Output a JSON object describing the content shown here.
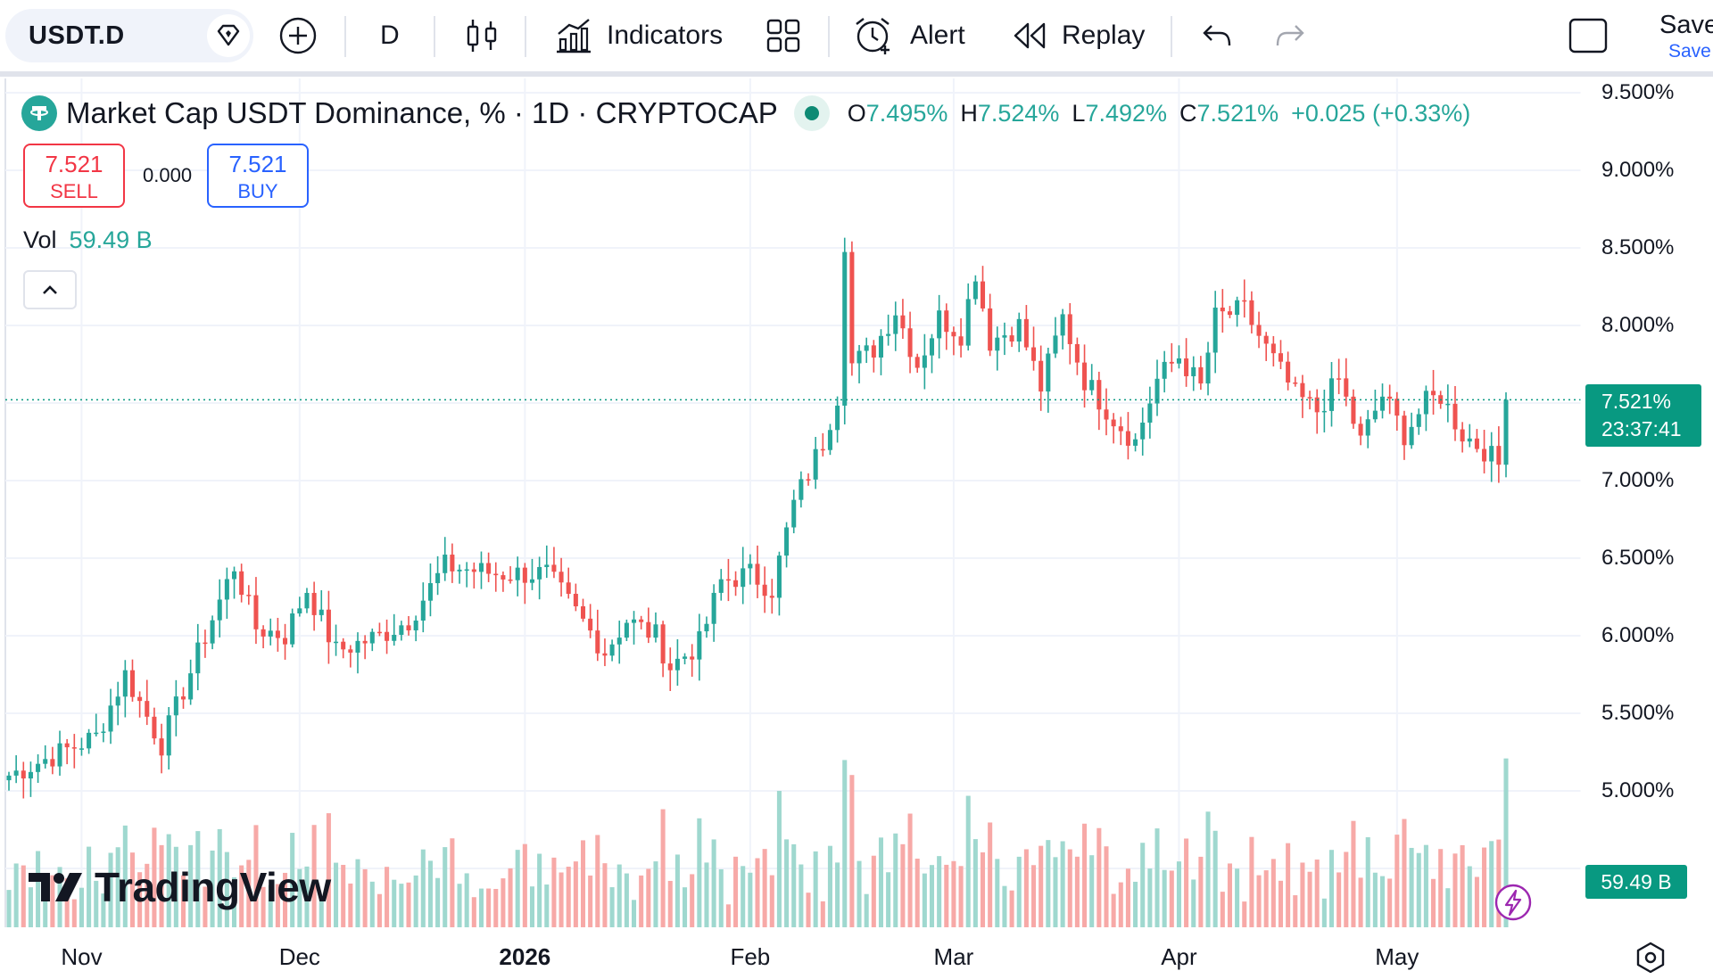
{
  "toolbar": {
    "symbol": "USDT.D",
    "interval": "D",
    "indicators_label": "Indicators",
    "alert_label": "Alert",
    "replay_label": "Replay",
    "save_label": "Save",
    "save_sub_label": "Save"
  },
  "legend": {
    "title": "Market Cap USDT Dominance, % · 1D · CRYPTOCAP",
    "open_key": "O",
    "open": "7.495%",
    "high_key": "H",
    "high": "7.524%",
    "low_key": "L",
    "low": "7.492%",
    "close_key": "C",
    "close": "7.521%",
    "change": "+0.025 (+0.33%)"
  },
  "trade": {
    "sell_price": "7.521",
    "sell_label": "SELL",
    "spread": "0.000",
    "buy_price": "7.521",
    "buy_label": "BUY"
  },
  "volume": {
    "label": "Vol",
    "value": "59.49 B"
  },
  "watermark": "TradingView",
  "price_axis": {
    "labels": [
      "9.500%",
      "9.000%",
      "8.500%",
      "8.000%",
      "7.000%",
      "6.500%",
      "6.000%",
      "5.500%",
      "5.000%"
    ],
    "last_price": "7.521%",
    "countdown": "23:37:41",
    "volume_tag": "59.49 B"
  },
  "time_axis": [
    "Nov",
    "Dec",
    "2026",
    "Feb",
    "Mar",
    "Apr",
    "May"
  ],
  "colors": {
    "up": "#26a69a",
    "down": "#ef5350",
    "up_vol": "#9fd8cf",
    "down_vol": "#f7a9a7",
    "accent": "#089981"
  },
  "chart_data": {
    "type": "candlestick",
    "title": "Market Cap USDT Dominance, % · 1D · CRYPTOCAP",
    "unit": "%",
    "ylim": [
      4.6,
      9.6
    ],
    "x_range": [
      "2025-10-22",
      "2026-05-16"
    ],
    "anchors": [
      [
        "2025-10-22",
        5.1
      ],
      [
        "2025-11-03",
        5.35
      ],
      [
        "2025-11-07",
        5.75
      ],
      [
        "2025-11-12",
        5.3
      ],
      [
        "2025-11-18",
        6.0
      ],
      [
        "2025-11-22",
        6.45
      ],
      [
        "2025-11-25",
        6.05
      ],
      [
        "2025-11-29",
        6.0
      ],
      [
        "2025-12-02",
        6.3
      ],
      [
        "2025-12-06",
        5.9
      ],
      [
        "2025-12-12",
        6.0
      ],
      [
        "2025-12-16",
        6.1
      ],
      [
        "2025-12-21",
        6.45
      ],
      [
        "2025-12-28",
        6.4
      ],
      [
        "2026-01-04",
        6.4
      ],
      [
        "2026-01-08",
        6.15
      ],
      [
        "2026-01-12",
        5.9
      ],
      [
        "2026-01-15",
        6.1
      ],
      [
        "2026-01-19",
        6.0
      ],
      [
        "2026-01-21",
        5.8
      ],
      [
        "2026-01-25",
        5.95
      ],
      [
        "2026-01-28",
        6.35
      ],
      [
        "2026-02-01",
        6.4
      ],
      [
        "2026-02-04",
        6.3
      ],
      [
        "2026-02-07",
        6.85
      ],
      [
        "2026-02-11",
        7.25
      ],
      [
        "2026-02-13",
        7.55
      ],
      [
        "2026-02-14",
        8.55
      ],
      [
        "2026-02-15",
        7.75
      ],
      [
        "2026-02-18",
        7.85
      ],
      [
        "2026-02-21",
        8.1
      ],
      [
        "2026-02-24",
        7.75
      ],
      [
        "2026-02-27",
        8.05
      ],
      [
        "2026-03-02",
        7.95
      ],
      [
        "2026-03-04",
        8.35
      ],
      [
        "2026-03-06",
        7.9
      ],
      [
        "2026-03-10",
        8.0
      ],
      [
        "2026-03-13",
        7.6
      ],
      [
        "2026-03-16",
        8.05
      ],
      [
        "2026-03-19",
        7.65
      ],
      [
        "2026-03-23",
        7.4
      ],
      [
        "2026-03-26",
        7.25
      ],
      [
        "2026-03-29",
        7.65
      ],
      [
        "2026-04-01",
        7.8
      ],
      [
        "2026-04-04",
        7.6
      ],
      [
        "2026-04-06",
        8.05
      ],
      [
        "2026-04-10",
        8.1
      ],
      [
        "2026-04-13",
        7.85
      ],
      [
        "2026-04-17",
        7.55
      ],
      [
        "2026-04-20",
        7.45
      ],
      [
        "2026-04-23",
        7.65
      ],
      [
        "2026-04-26",
        7.25
      ],
      [
        "2026-04-29",
        7.55
      ],
      [
        "2026-05-02",
        7.3
      ],
      [
        "2026-05-05",
        7.5
      ],
      [
        "2026-05-07",
        7.55
      ],
      [
        "2026-05-10",
        7.3
      ],
      [
        "2026-05-13",
        7.2
      ],
      [
        "2026-05-16",
        7.05
      ],
      [
        "2026-05-19",
        7.15
      ],
      [
        "2026-05-22",
        7.35
      ],
      [
        "2026-05-24",
        7.52
      ]
    ],
    "volume_scale": [
      0,
      100
    ]
  }
}
